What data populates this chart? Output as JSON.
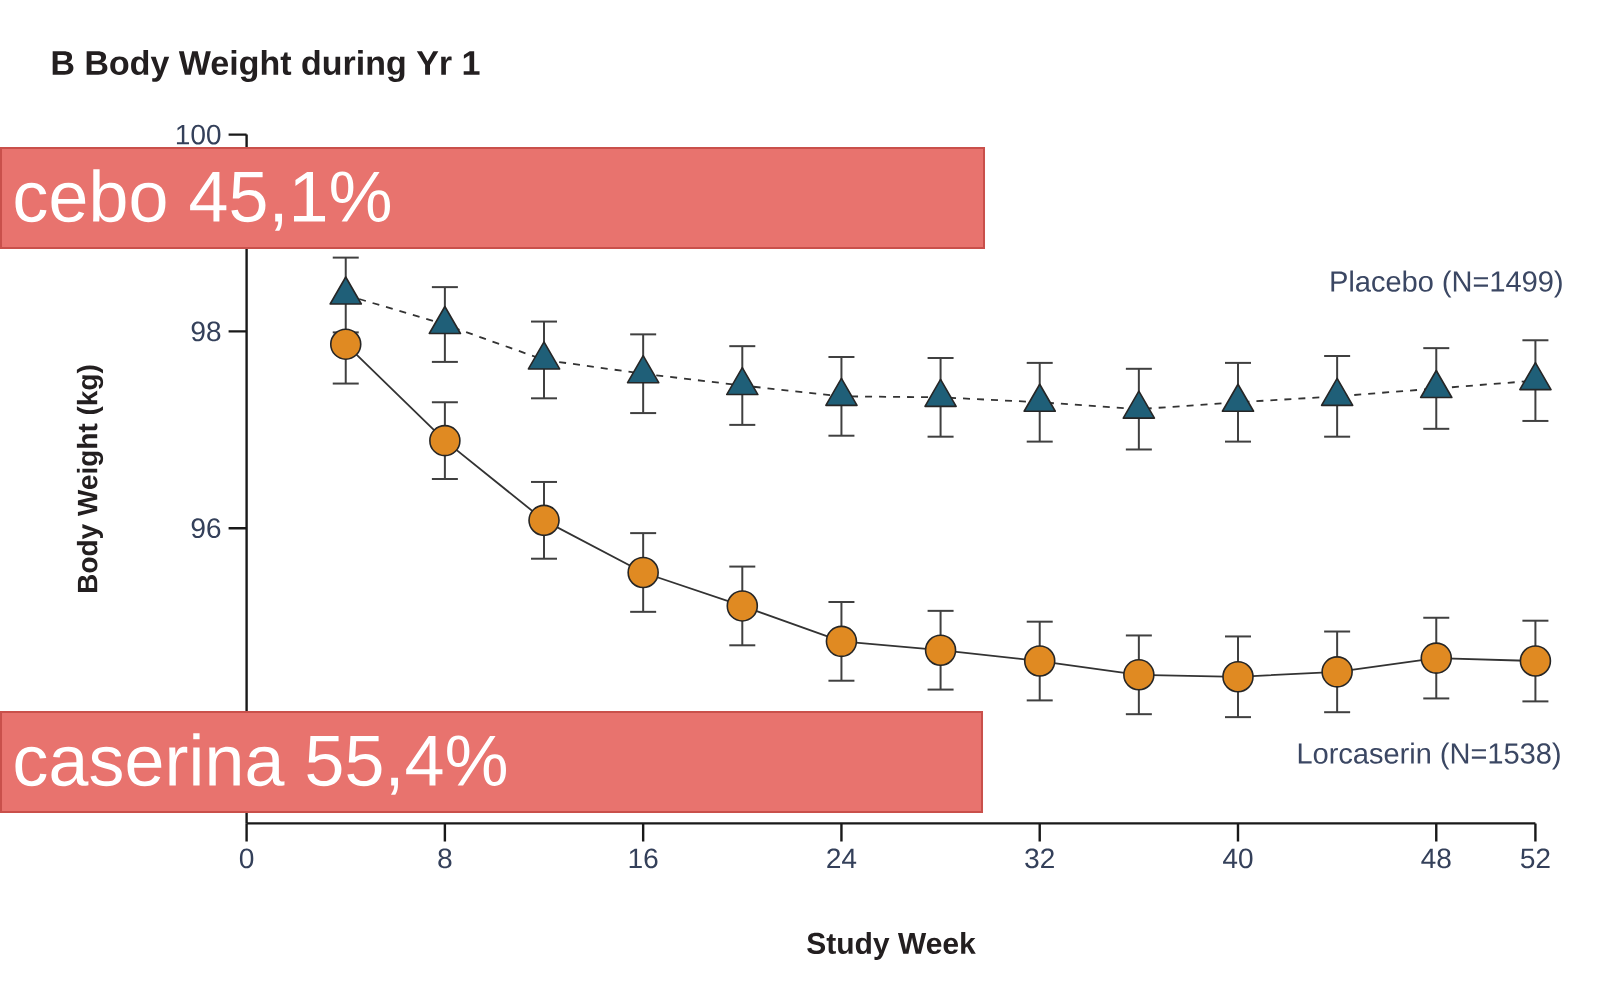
{
  "chart_data": {
    "type": "line",
    "title": "B Body Weight during Yr 1",
    "xlabel": "Study Week",
    "ylabel": "Body Weight (kg)",
    "x": [
      4,
      8,
      12,
      16,
      20,
      24,
      28,
      32,
      36,
      40,
      44,
      48,
      52
    ],
    "series": [
      {
        "name": "Lorcaserin (N=1538)",
        "color": "#e08a22",
        "marker": "circle",
        "line_style": "solid",
        "values": [
          97.87,
          96.89,
          96.08,
          95.55,
          95.21,
          94.85,
          94.76,
          94.65,
          94.51,
          94.49,
          94.54,
          94.68,
          94.65
        ],
        "errors": [
          [
            97.47,
            97.87
          ],
          0.39,
          0.39,
          0.4,
          0.4,
          0.4,
          0.4,
          0.4,
          0.4,
          0.41,
          0.41,
          0.41,
          0.41
        ]
      },
      {
        "name": "Placebo (N=1499)",
        "color": "#1f5f78",
        "marker": "triangle",
        "line_style": "dashed",
        "values": [
          98.37,
          98.07,
          97.71,
          97.57,
          97.45,
          97.34,
          97.33,
          97.28,
          97.21,
          97.28,
          97.34,
          97.42,
          97.5
        ],
        "errors": [
          0.38,
          0.38,
          0.39,
          0.4,
          0.4,
          0.4,
          0.4,
          0.4,
          0.41,
          0.4,
          0.41,
          0.41,
          0.41
        ]
      }
    ],
    "xlim": [
      0,
      52
    ],
    "xticks": [
      0,
      8,
      16,
      24,
      32,
      40,
      48,
      52
    ],
    "ylim": [
      93,
      100
    ],
    "yticks": [
      96,
      98,
      100
    ],
    "annotations": [
      "cebo 45,1%",
      "caserina 55,4%"
    ]
  }
}
